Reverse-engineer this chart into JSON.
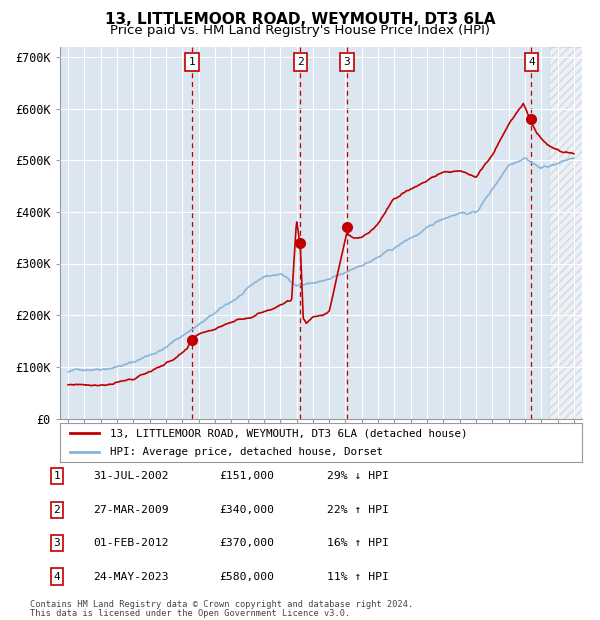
{
  "title": "13, LITTLEMOOR ROAD, WEYMOUTH, DT3 6LA",
  "subtitle": "Price paid vs. HM Land Registry's House Price Index (HPI)",
  "xlim": [
    1994.5,
    2026.5
  ],
  "ylim": [
    0,
    720000
  ],
  "yticks": [
    0,
    100000,
    200000,
    300000,
    400000,
    500000,
    600000,
    700000
  ],
  "ytick_labels": [
    "£0",
    "£100K",
    "£200K",
    "£300K",
    "£400K",
    "£500K",
    "£600K",
    "£700K"
  ],
  "xticks": [
    1995,
    1996,
    1997,
    1998,
    1999,
    2000,
    2001,
    2002,
    2003,
    2004,
    2005,
    2006,
    2007,
    2008,
    2009,
    2010,
    2011,
    2012,
    2013,
    2014,
    2015,
    2016,
    2017,
    2018,
    2019,
    2020,
    2021,
    2022,
    2023,
    2024,
    2025,
    2026
  ],
  "plot_bg_color": "#dce6f1",
  "grid_color": "#ffffff",
  "hpi_color": "#8ab4d8",
  "price_color": "#c00000",
  "vline_color": "#c00000",
  "purchases": [
    {
      "num": 1,
      "date": "31-JUL-2002",
      "year": 2002.58,
      "price": 151000,
      "pct": "29%",
      "dir": "↓"
    },
    {
      "num": 2,
      "date": "27-MAR-2009",
      "year": 2009.24,
      "price": 340000,
      "pct": "22%",
      "dir": "↑"
    },
    {
      "num": 3,
      "date": "01-FEB-2012",
      "year": 2012.08,
      "price": 370000,
      "pct": "16%",
      "dir": "↑"
    },
    {
      "num": 4,
      "date": "24-MAY-2023",
      "year": 2023.4,
      "price": 580000,
      "pct": "11%",
      "dir": "↑"
    }
  ],
  "legend_property_label": "13, LITTLEMOOR ROAD, WEYMOUTH, DT3 6LA (detached house)",
  "legend_hpi_label": "HPI: Average price, detached house, Dorset",
  "footer1": "Contains HM Land Registry data © Crown copyright and database right 2024.",
  "footer2": "This data is licensed under the Open Government Licence v3.0.",
  "hatching_start": 2024.5,
  "table_rows": [
    [
      "1",
      "31-JUL-2002",
      "£151,000",
      "29% ↓ HPI"
    ],
    [
      "2",
      "27-MAR-2009",
      "£340,000",
      "22% ↑ HPI"
    ],
    [
      "3",
      "01-FEB-2012",
      "£370,000",
      "16% ↑ HPI"
    ],
    [
      "4",
      "24-MAY-2023",
      "£580,000",
      "11% ↑ HPI"
    ]
  ]
}
